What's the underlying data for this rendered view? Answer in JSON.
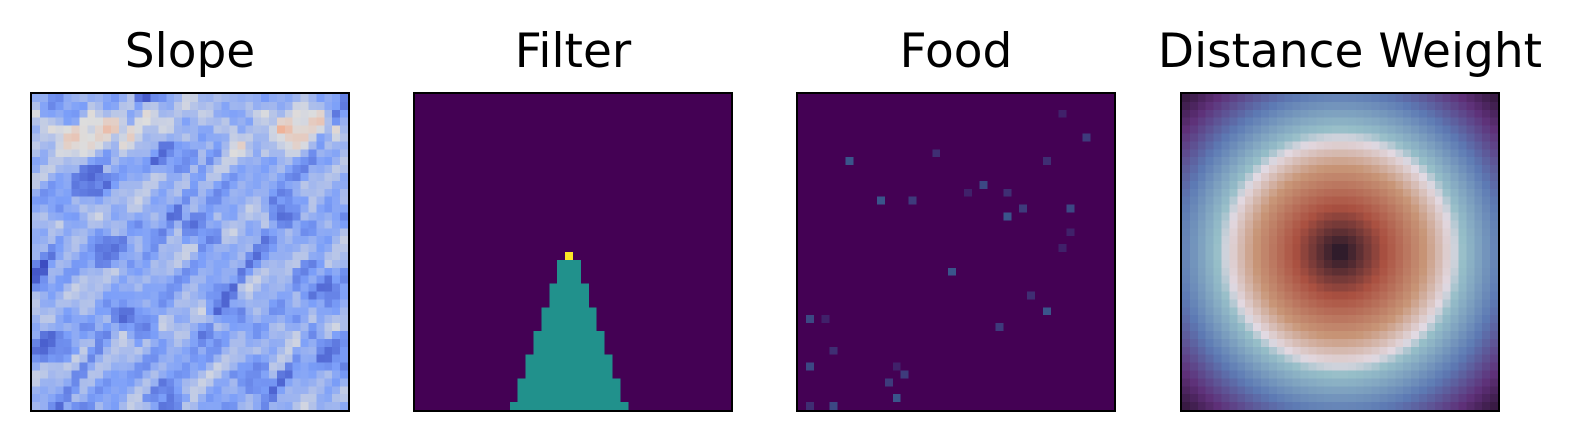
{
  "chart_data": [
    {
      "type": "heatmap",
      "title": "Slope",
      "colormap": "coolwarm",
      "grid_size": 40,
      "axes_visible": false
    },
    {
      "type": "heatmap",
      "title": "Filter",
      "colormap": "viridis",
      "grid_size": 40,
      "axes_visible": false,
      "values_present": [
        0,
        1,
        2
      ],
      "regions": {
        "background": 0,
        "triangle_cone": 1,
        "apex_cell": 2
      },
      "colors": {
        "0": "#440154",
        "1": "#21918c",
        "2": "#fde725"
      }
    },
    {
      "type": "heatmap",
      "title": "Food",
      "colormap": "viridis",
      "grid_size": 40,
      "axes_visible": false,
      "background_value": 0,
      "food_cells": [
        [
          33,
          2
        ],
        [
          36,
          5
        ],
        [
          6,
          8
        ],
        [
          17,
          7
        ],
        [
          23,
          11
        ],
        [
          21,
          12
        ],
        [
          14,
          13
        ],
        [
          10,
          13
        ],
        [
          26,
          12
        ],
        [
          34,
          14
        ],
        [
          33,
          19
        ],
        [
          28,
          14
        ],
        [
          19,
          22
        ],
        [
          29,
          25
        ],
        [
          1,
          28
        ],
        [
          3,
          28
        ],
        [
          25,
          29
        ],
        [
          31,
          27
        ],
        [
          4,
          32
        ],
        [
          1,
          34
        ],
        [
          12,
          34
        ],
        [
          11,
          36
        ],
        [
          12,
          38
        ],
        [
          1,
          39
        ],
        [
          4,
          39
        ],
        [
          34,
          17
        ],
        [
          13,
          35
        ],
        [
          26,
          15
        ],
        [
          31,
          8
        ]
      ],
      "food_value_range": [
        0.1,
        0.3
      ]
    },
    {
      "type": "heatmap",
      "title": "Distance Weight",
      "colormap": "twilight_shifted",
      "grid_size": 40,
      "axes_visible": false,
      "pattern": "radial distance from center"
    }
  ],
  "panels": {
    "slope_title": "Slope",
    "filter_title": "Filter",
    "food_title": "Food",
    "distance_title": "Distance Weight"
  }
}
